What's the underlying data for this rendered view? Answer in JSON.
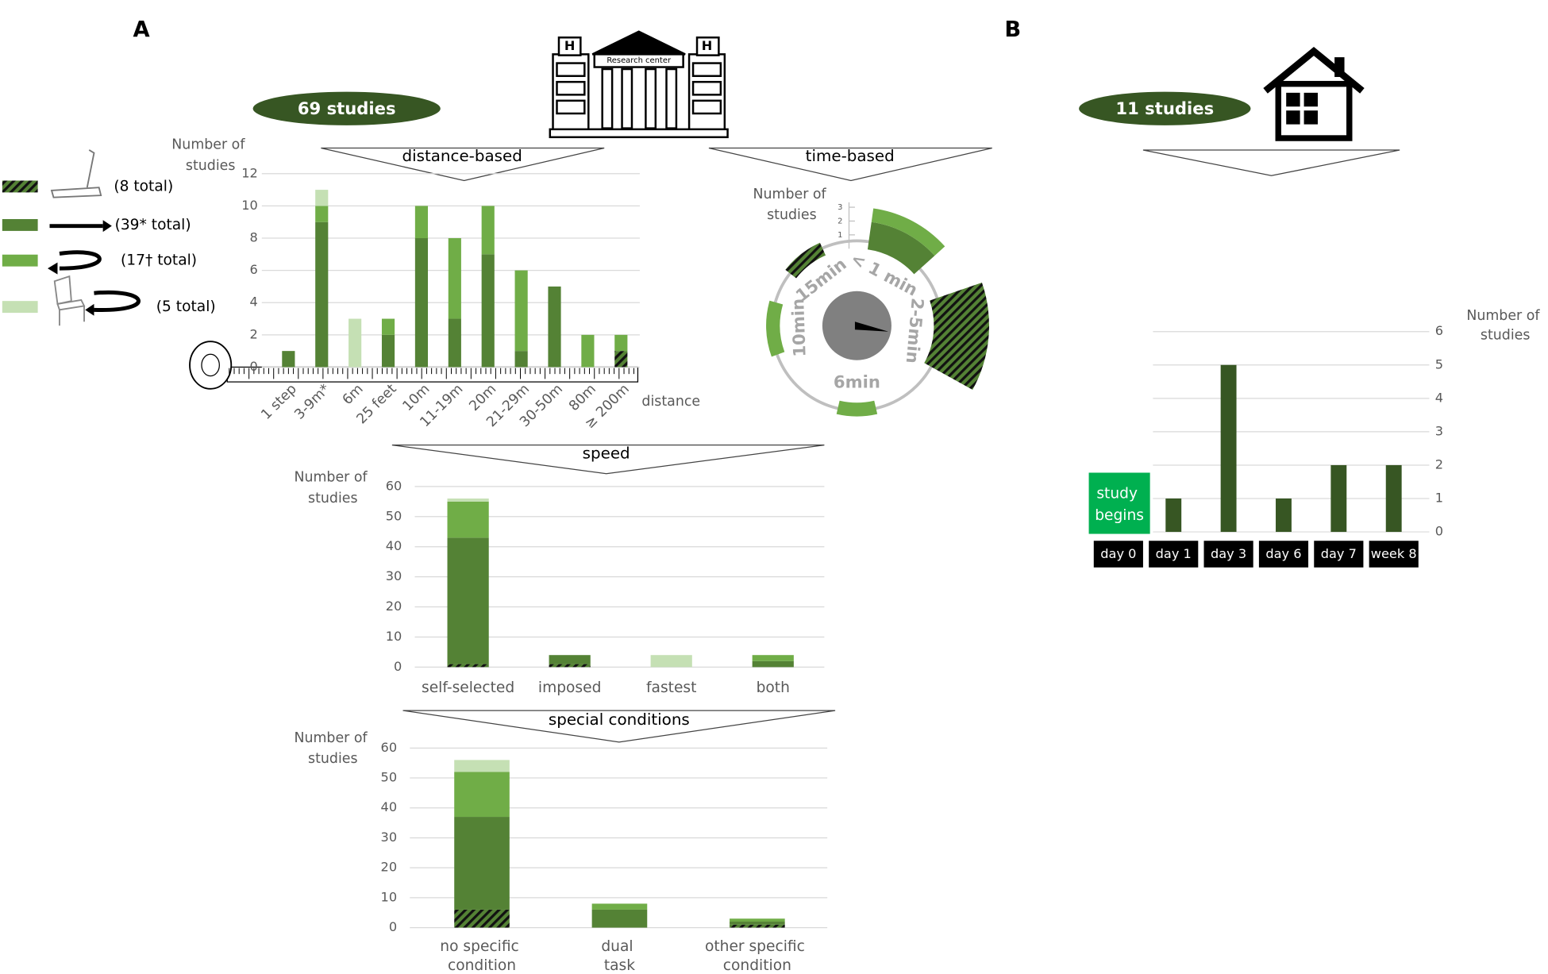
{
  "labels": {
    "panel_a": "A",
    "panel_b": "B",
    "studies_a": "69 studies",
    "studies_b": "11 studies",
    "building": "Research center"
  },
  "chart_data": [
    {
      "type": "stacked_bar",
      "title": "distance-based",
      "ylabel": "Number of studies",
      "xlabel": "distance",
      "categories": [
        "1 step",
        "3-9m*",
        "6m",
        "25 feet",
        "10m",
        "11-19m",
        "20m",
        "21-29m",
        "30-50m",
        "80m",
        "≥ 200m"
      ],
      "ylim": [
        0,
        12
      ],
      "yticks": [
        0,
        2,
        4,
        6,
        8,
        10,
        12
      ],
      "grid": true,
      "series": [
        {
          "name": "(8 total)",
          "color": "#375623",
          "pattern": "hatch",
          "values": [
            0,
            0,
            0,
            0,
            0,
            0,
            0,
            0,
            0,
            0,
            1
          ]
        },
        {
          "name": "(39* total)",
          "color": "#548235",
          "values": [
            1,
            9,
            0,
            2,
            8,
            3,
            7,
            1,
            5,
            0,
            0
          ]
        },
        {
          "name": "(17† total)",
          "color": "#70ad47",
          "values": [
            0,
            1,
            0,
            1,
            2,
            5,
            3,
            5,
            0,
            2,
            1
          ]
        },
        {
          "name": "(5 total)",
          "color": "#c5e0b4",
          "values": [
            0,
            1,
            3,
            0,
            0,
            0,
            0,
            0,
            0,
            0,
            0
          ]
        }
      ]
    },
    {
      "type": "polar_bar",
      "title": "time-based",
      "rlabel": "Number of studies",
      "categories": [
        "< 1 min",
        "2-5min",
        "6min",
        "10min",
        "15min"
      ],
      "rlim": [
        0,
        3
      ],
      "rticks": [
        1,
        2,
        3
      ],
      "series": [
        {
          "color": "#375623",
          "pattern": "hatch",
          "values": [
            0,
            4,
            0,
            0,
            1
          ]
        },
        {
          "color": "#548235",
          "values": [
            2,
            0,
            0,
            0,
            0
          ]
        },
        {
          "color": "#70ad47",
          "values": [
            1,
            0,
            1,
            1,
            0
          ]
        },
        {
          "color": "#c5e0b4",
          "values": [
            0,
            0,
            0,
            0,
            0
          ]
        }
      ]
    },
    {
      "type": "stacked_bar",
      "title": "speed",
      "ylabel": "Number of studies",
      "categories": [
        "self-selected",
        "imposed",
        "fastest",
        "both"
      ],
      "ylim": [
        0,
        60
      ],
      "yticks": [
        0,
        10,
        20,
        30,
        40,
        50,
        60
      ],
      "grid": true,
      "series": [
        {
          "color": "#375623",
          "pattern": "hatch",
          "values": [
            1,
            1,
            0,
            0
          ]
        },
        {
          "color": "#548235",
          "values": [
            42,
            3,
            0,
            2
          ]
        },
        {
          "color": "#70ad47",
          "values": [
            12,
            0,
            0,
            2
          ]
        },
        {
          "color": "#c5e0b4",
          "values": [
            1,
            0,
            4,
            0
          ]
        }
      ]
    },
    {
      "type": "stacked_bar",
      "title": "special conditions",
      "ylabel": "Number of studies",
      "categories": [
        "no specific condition",
        "dual task",
        "other specific condition"
      ],
      "ylim": [
        0,
        60
      ],
      "yticks": [
        0,
        10,
        20,
        30,
        40,
        50,
        60
      ],
      "grid": true,
      "series": [
        {
          "color": "#375623",
          "pattern": "hatch",
          "values": [
            6,
            0,
            1
          ]
        },
        {
          "color": "#548235",
          "values": [
            31,
            6,
            1
          ]
        },
        {
          "color": "#70ad47",
          "values": [
            15,
            2,
            1
          ]
        },
        {
          "color": "#c5e0b4",
          "values": [
            4,
            0,
            0
          ]
        }
      ]
    },
    {
      "type": "bar",
      "ylabel": "Number of studies",
      "annotation": "study begins",
      "axis_side": "right",
      "categories": [
        "day 0",
        "day 1",
        "day 3",
        "day 6",
        "day 7",
        "week 8"
      ],
      "values": [
        null,
        1,
        5,
        1,
        2,
        2
      ],
      "color": "#375623",
      "ylim": [
        0,
        6
      ],
      "yticks": [
        0,
        1,
        2,
        3,
        4,
        5,
        6
      ],
      "grid": true
    }
  ]
}
